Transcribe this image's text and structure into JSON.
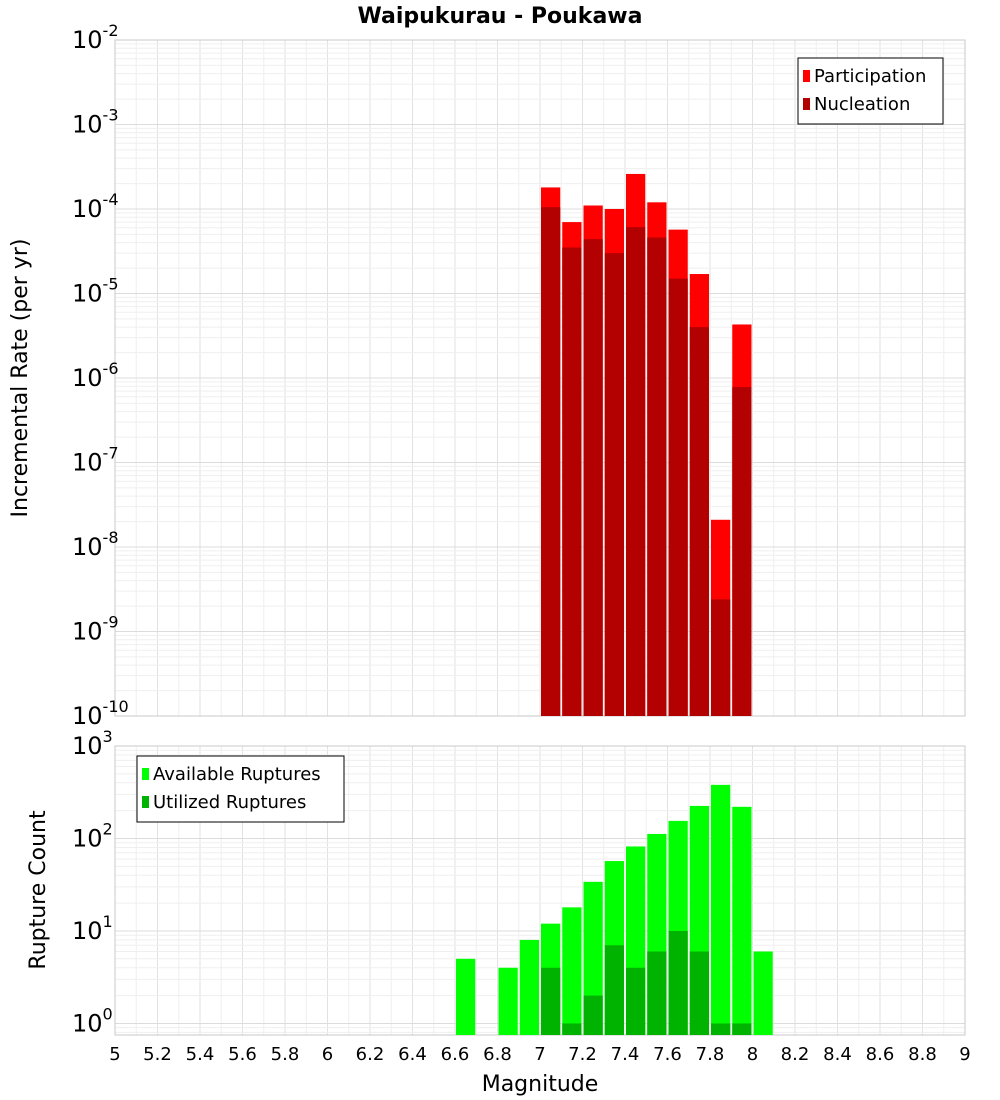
{
  "chart_data": {
    "title": "Waipukurau - Poukawa",
    "xlabel": "Magnitude",
    "xlim": [
      5,
      9
    ],
    "x_ticks": [
      "5",
      "5.2",
      "5.4",
      "5.6",
      "5.8",
      "6",
      "6.2",
      "6.4",
      "6.6",
      "6.8",
      "7",
      "7.2",
      "7.4",
      "7.6",
      "7.8",
      "8",
      "8.2",
      "8.4",
      "8.6",
      "8.8",
      "9"
    ],
    "panels": [
      {
        "type": "bar",
        "ylabel": "Incremental Rate (per yr)",
        "yscale": "log",
        "ylim": [
          1e-10,
          0.01
        ],
        "y_ticks": [
          {
            "base": "10",
            "exp": "-10"
          },
          {
            "base": "10",
            "exp": "-9"
          },
          {
            "base": "10",
            "exp": "-8"
          },
          {
            "base": "10",
            "exp": "-7"
          },
          {
            "base": "10",
            "exp": "-6"
          },
          {
            "base": "10",
            "exp": "-5"
          },
          {
            "base": "10",
            "exp": "-4"
          },
          {
            "base": "10",
            "exp": "-3"
          },
          {
            "base": "10",
            "exp": "-2"
          }
        ],
        "grid": true,
        "legend_position": "top-right",
        "x": [
          7.05,
          7.15,
          7.25,
          7.35,
          7.45,
          7.55,
          7.65,
          7.75,
          7.85,
          7.95
        ],
        "series": [
          {
            "name": "Participation",
            "color": "#ff0000",
            "values": [
              0.00018,
              7e-05,
              0.00011,
              0.0001,
              0.00026,
              0.00012,
              5.7e-05,
              1.7e-05,
              2.1e-08,
              4.3e-06
            ]
          },
          {
            "name": "Nucleation",
            "color": "#b30000",
            "values": [
              0.000105,
              3.5e-05,
              4.4e-05,
              3e-05,
              6.1e-05,
              4.6e-05,
              1.5e-05,
              4e-06,
              2.4e-09,
              7.8e-07
            ]
          }
        ]
      },
      {
        "type": "bar",
        "ylabel": "Rupture Count",
        "yscale": "log",
        "ylim": [
          0.75,
          1000
        ],
        "y_ticks": [
          {
            "base": "10",
            "exp": "0"
          },
          {
            "base": "10",
            "exp": "1"
          },
          {
            "base": "10",
            "exp": "2"
          },
          {
            "base": "10",
            "exp": "3"
          }
        ],
        "grid": true,
        "legend_position": "top-left",
        "x": [
          6.65,
          6.85,
          6.95,
          7.05,
          7.15,
          7.25,
          7.35,
          7.45,
          7.55,
          7.65,
          7.75,
          7.85,
          7.95,
          8.05
        ],
        "series": [
          {
            "name": "Available Ruptures",
            "color": "#00ff00",
            "values": [
              5,
              4,
              8,
              12,
              18,
              34,
              57,
              82,
              112,
              155,
              225,
              380,
              220,
              6
            ]
          },
          {
            "name": "Utilized Ruptures",
            "color": "#00b300",
            "values": [
              0,
              0,
              0,
              4,
              1,
              2,
              7,
              4,
              6,
              10,
              6,
              1,
              1,
              0
            ]
          }
        ]
      }
    ]
  }
}
